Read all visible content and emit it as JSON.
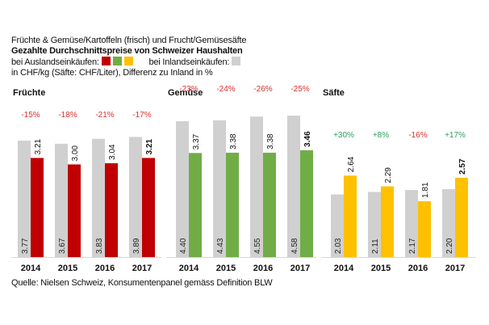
{
  "header": {
    "line1": "Früchte & Gemüse/Kartoffeln (frisch) und Frucht/Gemüsesäfte",
    "line2": "Gezahlte Durchschnittspreise von Schweizer Haushalten",
    "line3a": "bei Auslandseinkäufen:",
    "line3b": "bei Inlandseinkäufen:",
    "line4": "in CHF/kg (Säfte: CHF/Liter), Differenz zu Inland in %"
  },
  "legend": {
    "abroad_colors": [
      "#c00000",
      "#70ad47",
      "#ffc000"
    ],
    "domestic_color": "#d0d0d0"
  },
  "source": "Quelle: Nielsen Schweiz, Konsumentenpanel gemäss Definition BLW",
  "chart_data": [
    {
      "type": "bar",
      "title": "Früchte",
      "categories": [
        "2014",
        "2015",
        "2016",
        "2017"
      ],
      "series": [
        {
          "name": "Inlandseinkäufe",
          "color": "#d0d0d0",
          "values": [
            3.77,
            3.67,
            3.83,
            3.89
          ],
          "labels": [
            "3.77",
            "3.67",
            "3.83",
            "3.89"
          ]
        },
        {
          "name": "Auslandseinkäufe",
          "color": "#c00000",
          "values": [
            3.21,
            3.0,
            3.04,
            3.21
          ],
          "labels": [
            "3.21",
            "3.00",
            "3.04",
            "3.21"
          ]
        }
      ],
      "differences": [
        "-15%",
        "-18%",
        "-21%",
        "-17%"
      ],
      "difference_colors": [
        "#d93030",
        "#d93030",
        "#d93030",
        "#d93030"
      ],
      "ylim": [
        0,
        5
      ]
    },
    {
      "type": "bar",
      "title": "Gemüse",
      "categories": [
        "2014",
        "2015",
        "2016",
        "2017"
      ],
      "series": [
        {
          "name": "Inlandseinkäufe",
          "color": "#d0d0d0",
          "values": [
            4.4,
            4.43,
            4.55,
            4.58
          ],
          "labels": [
            "4.40",
            "4.43",
            "4.55",
            "4.58"
          ]
        },
        {
          "name": "Auslandseinkäufe",
          "color": "#70ad47",
          "values": [
            3.37,
            3.38,
            3.38,
            3.46
          ],
          "labels": [
            "3.37",
            "3.38",
            "3.38",
            "3.46"
          ]
        }
      ],
      "differences": [
        "-23%",
        "-24%",
        "-26%",
        "-25%"
      ],
      "difference_colors": [
        "#d93030",
        "#d93030",
        "#d93030",
        "#d93030"
      ],
      "ylim": [
        0,
        5
      ]
    },
    {
      "type": "bar",
      "title": "Säfte",
      "categories": [
        "2014",
        "2015",
        "2016",
        "2017"
      ],
      "series": [
        {
          "name": "Inlandseinkäufe",
          "color": "#d0d0d0",
          "values": [
            2.03,
            2.11,
            2.17,
            2.2
          ],
          "labels": [
            "2.03",
            "2.11",
            "2.17",
            "2.20"
          ]
        },
        {
          "name": "Auslandseinkäufe",
          "color": "#ffc000",
          "values": [
            2.64,
            2.29,
            1.81,
            2.57
          ],
          "labels": [
            "2.64",
            "2.29",
            "1.81",
            "2.57"
          ]
        }
      ],
      "differences": [
        "+30%",
        "+8%",
        "-16%",
        "+17%"
      ],
      "difference_colors": [
        "#2e9e5b",
        "#2e9e5b",
        "#d93030",
        "#2e9e5b"
      ],
      "ylim": [
        0,
        5
      ]
    }
  ]
}
